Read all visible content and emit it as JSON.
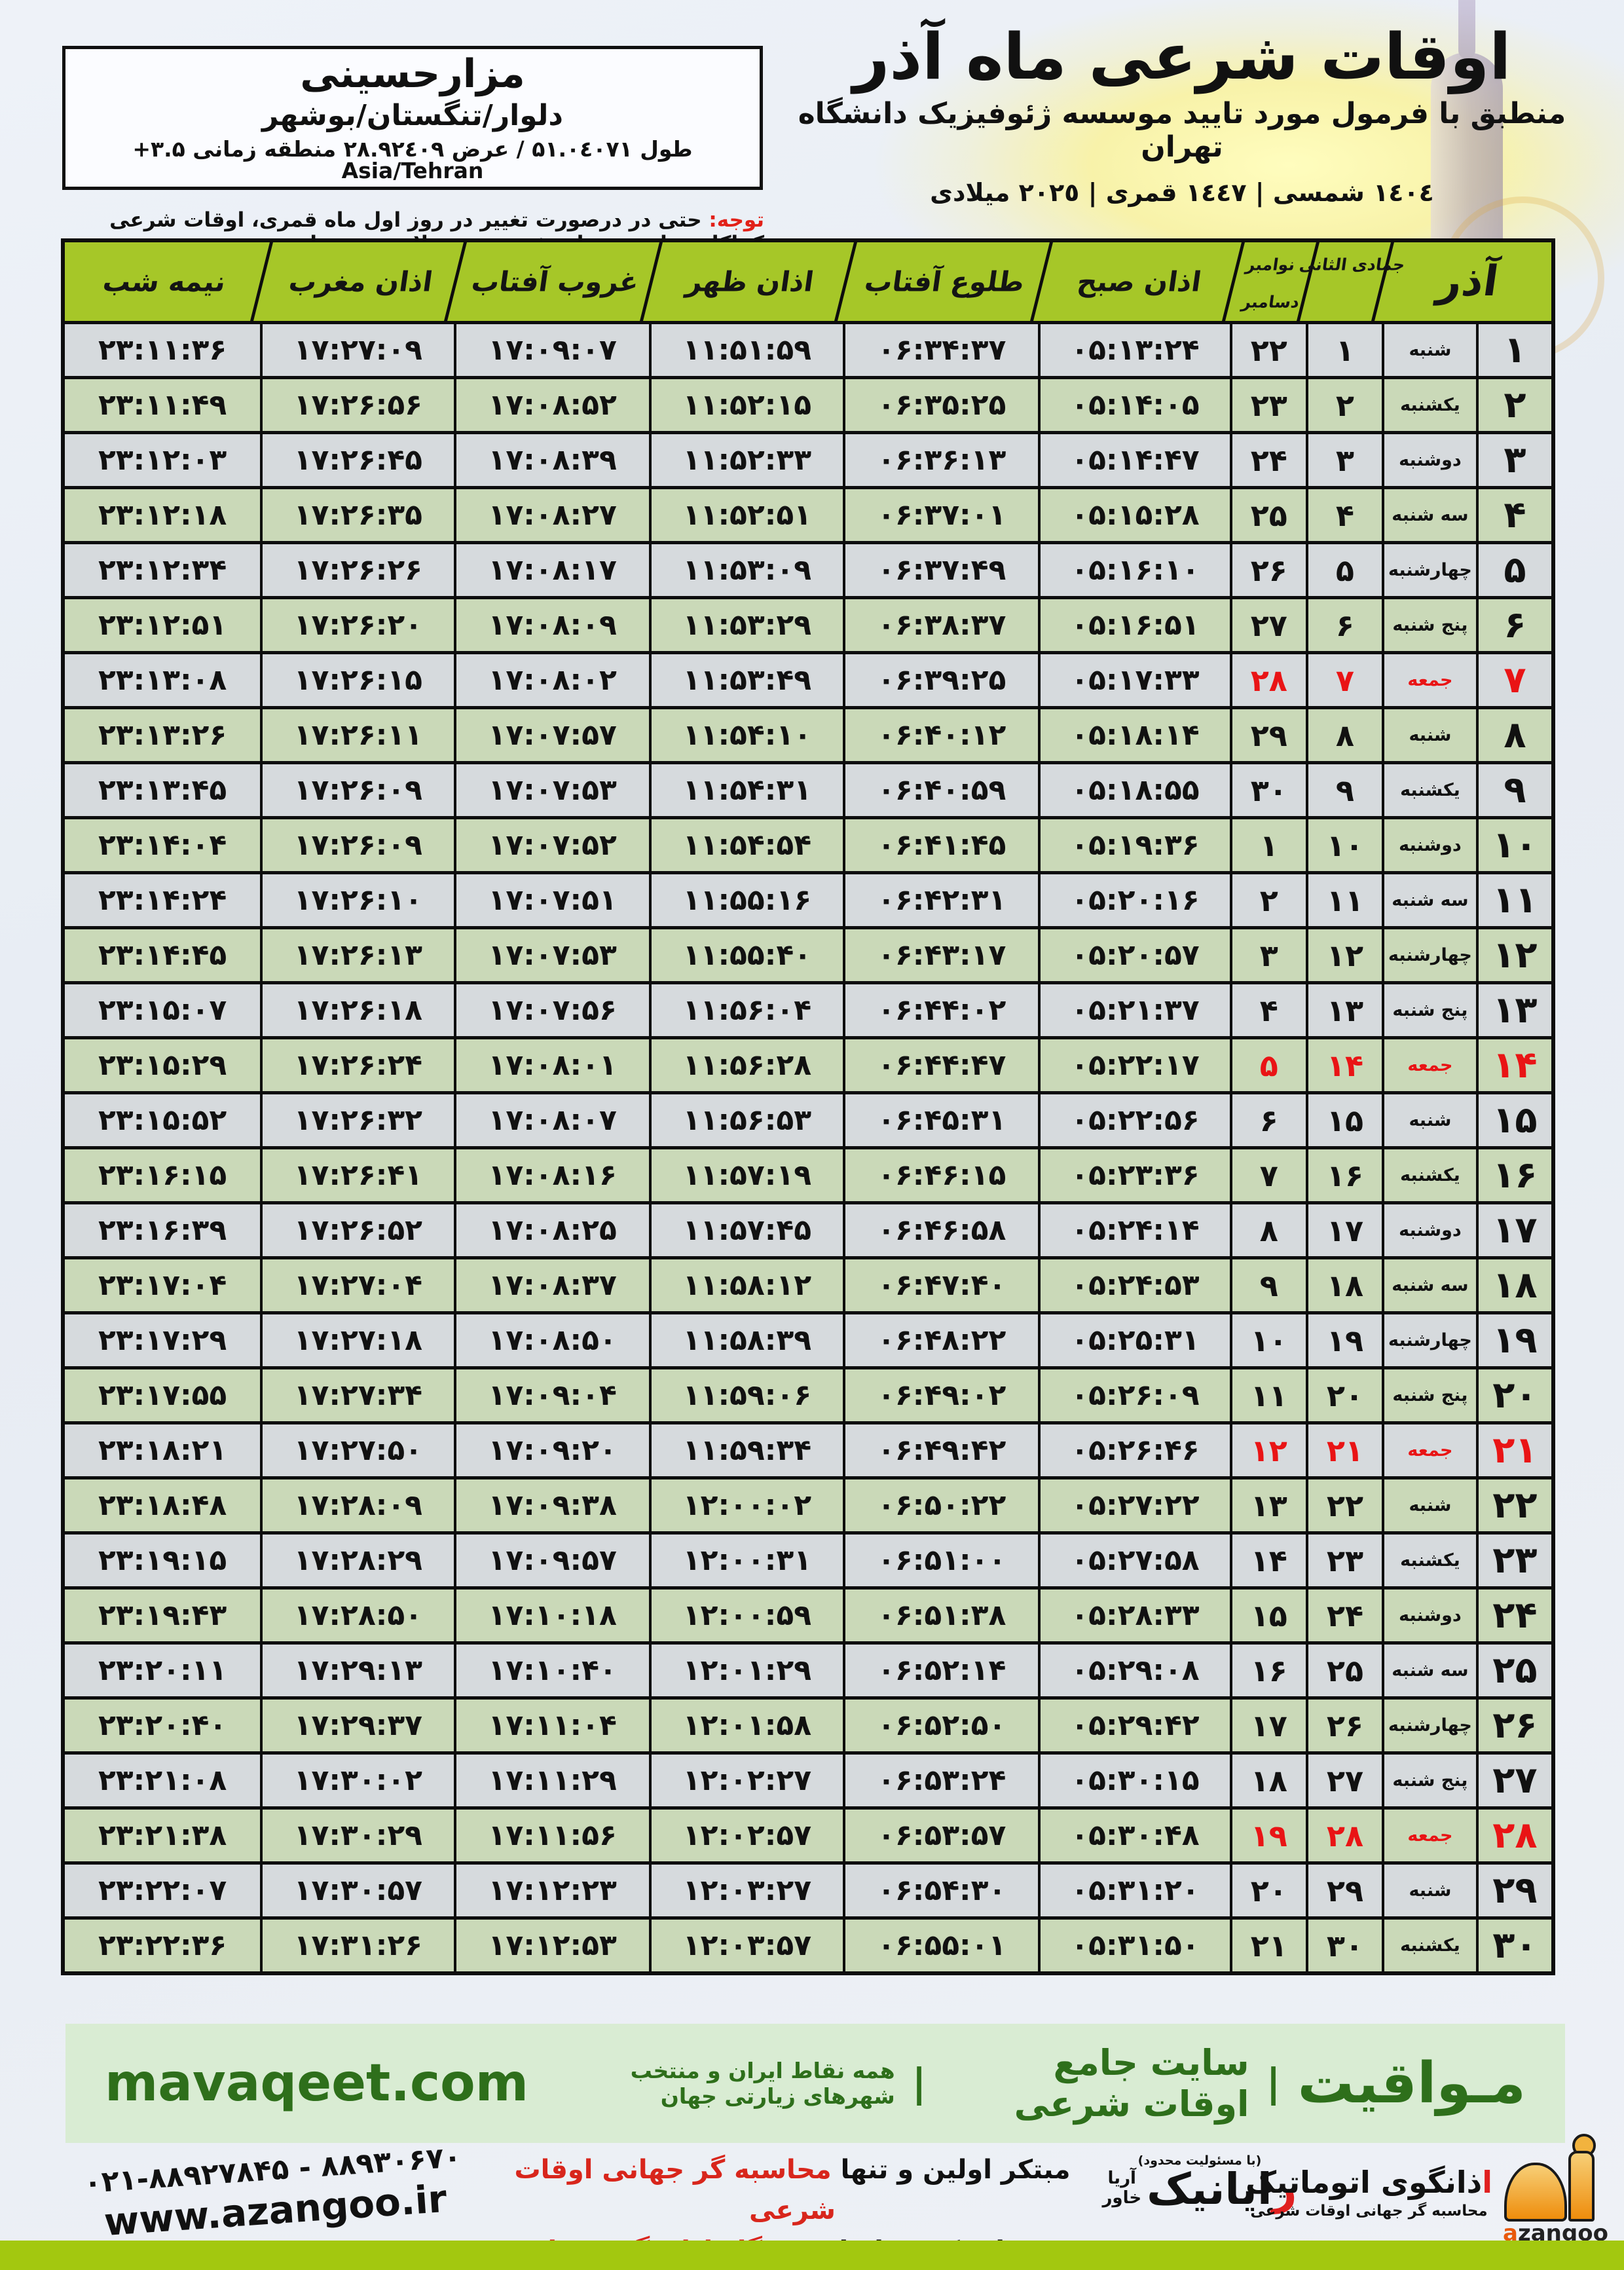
{
  "title": {
    "main": "اوقات شرعی ماه آذر",
    "subtitle": "منطبق با فرمول مورد تایید موسسه ژئوفیزیک دانشگاه تهران",
    "dates": "١٤٠٤ شمسی | ١٤٤٧ قمری | ٢٠٢٥ میلادی"
  },
  "location": {
    "name": "مزارحسینی",
    "region": "دلوار/تنگستان/بوشهر",
    "coords": "طول ۵۱.۰٤۰۷۱ / عرض ۲۸.۹۲٤۰۹ منطقه زمانی ‎+۳.۵‎ Asia/Tehran"
  },
  "note": {
    "label": "توجه:",
    "text": " حتی در درصورت تغییر در روز اول ماه قمری، اوقات شرعی کماکان برای روزهای شمسی و میلادی معتبر است."
  },
  "table": {
    "headers": {
      "month": "آذر",
      "hijri_month": "جمادی الثانی",
      "greg_month_1": "نوامبر",
      "greg_month_2": "دسامبر",
      "fajr": "اذان صبح",
      "sunrise": "طلوع آفتاب",
      "dhuhr": "اذان ظهر",
      "sunset": "غروب آفتاب",
      "maghrib": "اذان مغرب",
      "midnight": "نیمه شب"
    },
    "rows": [
      {
        "day": "۱",
        "weekday": "شنبه",
        "hijri": "۱",
        "greg": "۲۲",
        "fajr": "۰۵:۱۳:۲۴",
        "sunrise": "۰۶:۳۴:۳۷",
        "dhuhr": "۱۱:۵۱:۵۹",
        "sunset": "۱۷:۰۹:۰۷",
        "maghrib": "۱۷:۲۷:۰۹",
        "midnight": "۲۳:۱۱:۳۶",
        "friday": false
      },
      {
        "day": "۲",
        "weekday": "یکشنبه",
        "hijri": "۲",
        "greg": "۲۳",
        "fajr": "۰۵:۱۴:۰۵",
        "sunrise": "۰۶:۳۵:۲۵",
        "dhuhr": "۱۱:۵۲:۱۵",
        "sunset": "۱۷:۰۸:۵۲",
        "maghrib": "۱۷:۲۶:۵۶",
        "midnight": "۲۳:۱۱:۴۹",
        "friday": false
      },
      {
        "day": "۳",
        "weekday": "دوشنبه",
        "hijri": "۳",
        "greg": "۲۴",
        "fajr": "۰۵:۱۴:۴۷",
        "sunrise": "۰۶:۳۶:۱۳",
        "dhuhr": "۱۱:۵۲:۳۳",
        "sunset": "۱۷:۰۸:۳۹",
        "maghrib": "۱۷:۲۶:۴۵",
        "midnight": "۲۳:۱۲:۰۳",
        "friday": false
      },
      {
        "day": "۴",
        "weekday": "سه شنبه",
        "hijri": "۴",
        "greg": "۲۵",
        "fajr": "۰۵:۱۵:۲۸",
        "sunrise": "۰۶:۳۷:۰۱",
        "dhuhr": "۱۱:۵۲:۵۱",
        "sunset": "۱۷:۰۸:۲۷",
        "maghrib": "۱۷:۲۶:۳۵",
        "midnight": "۲۳:۱۲:۱۸",
        "friday": false
      },
      {
        "day": "۵",
        "weekday": "چهارشنبه",
        "hijri": "۵",
        "greg": "۲۶",
        "fajr": "۰۵:۱۶:۱۰",
        "sunrise": "۰۶:۳۷:۴۹",
        "dhuhr": "۱۱:۵۳:۰۹",
        "sunset": "۱۷:۰۸:۱۷",
        "maghrib": "۱۷:۲۶:۲۶",
        "midnight": "۲۳:۱۲:۳۴",
        "friday": false
      },
      {
        "day": "۶",
        "weekday": "پنج شنبه",
        "hijri": "۶",
        "greg": "۲۷",
        "fajr": "۰۵:۱۶:۵۱",
        "sunrise": "۰۶:۳۸:۳۷",
        "dhuhr": "۱۱:۵۳:۲۹",
        "sunset": "۱۷:۰۸:۰۹",
        "maghrib": "۱۷:۲۶:۲۰",
        "midnight": "۲۳:۱۲:۵۱",
        "friday": false
      },
      {
        "day": "۷",
        "weekday": "جمعه",
        "hijri": "۷",
        "greg": "۲۸",
        "fajr": "۰۵:۱۷:۳۳",
        "sunrise": "۰۶:۳۹:۲۵",
        "dhuhr": "۱۱:۵۳:۴۹",
        "sunset": "۱۷:۰۸:۰۲",
        "maghrib": "۱۷:۲۶:۱۵",
        "midnight": "۲۳:۱۳:۰۸",
        "friday": true
      },
      {
        "day": "۸",
        "weekday": "شنبه",
        "hijri": "۸",
        "greg": "۲۹",
        "fajr": "۰۵:۱۸:۱۴",
        "sunrise": "۰۶:۴۰:۱۲",
        "dhuhr": "۱۱:۵۴:۱۰",
        "sunset": "۱۷:۰۷:۵۷",
        "maghrib": "۱۷:۲۶:۱۱",
        "midnight": "۲۳:۱۳:۲۶",
        "friday": false
      },
      {
        "day": "۹",
        "weekday": "یکشنبه",
        "hijri": "۹",
        "greg": "۳۰",
        "fajr": "۰۵:۱۸:۵۵",
        "sunrise": "۰۶:۴۰:۵۹",
        "dhuhr": "۱۱:۵۴:۳۱",
        "sunset": "۱۷:۰۷:۵۳",
        "maghrib": "۱۷:۲۶:۰۹",
        "midnight": "۲۳:۱۳:۴۵",
        "friday": false
      },
      {
        "day": "۱۰",
        "weekday": "دوشنبه",
        "hijri": "۱۰",
        "greg": "۱",
        "fajr": "۰۵:۱۹:۳۶",
        "sunrise": "۰۶:۴۱:۴۵",
        "dhuhr": "۱۱:۵۴:۵۴",
        "sunset": "۱۷:۰۷:۵۲",
        "maghrib": "۱۷:۲۶:۰۹",
        "midnight": "۲۳:۱۴:۰۴",
        "friday": false
      },
      {
        "day": "۱۱",
        "weekday": "سه شنبه",
        "hijri": "۱۱",
        "greg": "۲",
        "fajr": "۰۵:۲۰:۱۶",
        "sunrise": "۰۶:۴۲:۳۱",
        "dhuhr": "۱۱:۵۵:۱۶",
        "sunset": "۱۷:۰۷:۵۱",
        "maghrib": "۱۷:۲۶:۱۰",
        "midnight": "۲۳:۱۴:۲۴",
        "friday": false
      },
      {
        "day": "۱۲",
        "weekday": "چهارشنبه",
        "hijri": "۱۲",
        "greg": "۳",
        "fajr": "۰۵:۲۰:۵۷",
        "sunrise": "۰۶:۴۳:۱۷",
        "dhuhr": "۱۱:۵۵:۴۰",
        "sunset": "۱۷:۰۷:۵۳",
        "maghrib": "۱۷:۲۶:۱۳",
        "midnight": "۲۳:۱۴:۴۵",
        "friday": false
      },
      {
        "day": "۱۳",
        "weekday": "پنج شنبه",
        "hijri": "۱۳",
        "greg": "۴",
        "fajr": "۰۵:۲۱:۳۷",
        "sunrise": "۰۶:۴۴:۰۲",
        "dhuhr": "۱۱:۵۶:۰۴",
        "sunset": "۱۷:۰۷:۵۶",
        "maghrib": "۱۷:۲۶:۱۸",
        "midnight": "۲۳:۱۵:۰۷",
        "friday": false
      },
      {
        "day": "۱۴",
        "weekday": "جمعه",
        "hijri": "۱۴",
        "greg": "۵",
        "fajr": "۰۵:۲۲:۱۷",
        "sunrise": "۰۶:۴۴:۴۷",
        "dhuhr": "۱۱:۵۶:۲۸",
        "sunset": "۱۷:۰۸:۰۱",
        "maghrib": "۱۷:۲۶:۲۴",
        "midnight": "۲۳:۱۵:۲۹",
        "friday": true
      },
      {
        "day": "۱۵",
        "weekday": "شنبه",
        "hijri": "۱۵",
        "greg": "۶",
        "fajr": "۰۵:۲۲:۵۶",
        "sunrise": "۰۶:۴۵:۳۱",
        "dhuhr": "۱۱:۵۶:۵۳",
        "sunset": "۱۷:۰۸:۰۷",
        "maghrib": "۱۷:۲۶:۳۲",
        "midnight": "۲۳:۱۵:۵۲",
        "friday": false
      },
      {
        "day": "۱۶",
        "weekday": "یکشنبه",
        "hijri": "۱۶",
        "greg": "۷",
        "fajr": "۰۵:۲۳:۳۶",
        "sunrise": "۰۶:۴۶:۱۵",
        "dhuhr": "۱۱:۵۷:۱۹",
        "sunset": "۱۷:۰۸:۱۶",
        "maghrib": "۱۷:۲۶:۴۱",
        "midnight": "۲۳:۱۶:۱۵",
        "friday": false
      },
      {
        "day": "۱۷",
        "weekday": "دوشنبه",
        "hijri": "۱۷",
        "greg": "۸",
        "fajr": "۰۵:۲۴:۱۴",
        "sunrise": "۰۶:۴۶:۵۸",
        "dhuhr": "۱۱:۵۷:۴۵",
        "sunset": "۱۷:۰۸:۲۵",
        "maghrib": "۱۷:۲۶:۵۲",
        "midnight": "۲۳:۱۶:۳۹",
        "friday": false
      },
      {
        "day": "۱۸",
        "weekday": "سه شنبه",
        "hijri": "۱۸",
        "greg": "۹",
        "fajr": "۰۵:۲۴:۵۳",
        "sunrise": "۰۶:۴۷:۴۰",
        "dhuhr": "۱۱:۵۸:۱۲",
        "sunset": "۱۷:۰۸:۳۷",
        "maghrib": "۱۷:۲۷:۰۴",
        "midnight": "۲۳:۱۷:۰۴",
        "friday": false
      },
      {
        "day": "۱۹",
        "weekday": "چهارشنبه",
        "hijri": "۱۹",
        "greg": "۱۰",
        "fajr": "۰۵:۲۵:۳۱",
        "sunrise": "۰۶:۴۸:۲۲",
        "dhuhr": "۱۱:۵۸:۳۹",
        "sunset": "۱۷:۰۸:۵۰",
        "maghrib": "۱۷:۲۷:۱۸",
        "midnight": "۲۳:۱۷:۲۹",
        "friday": false
      },
      {
        "day": "۲۰",
        "weekday": "پنج شنبه",
        "hijri": "۲۰",
        "greg": "۱۱",
        "fajr": "۰۵:۲۶:۰۹",
        "sunrise": "۰۶:۴۹:۰۲",
        "dhuhr": "۱۱:۵۹:۰۶",
        "sunset": "۱۷:۰۹:۰۴",
        "maghrib": "۱۷:۲۷:۳۴",
        "midnight": "۲۳:۱۷:۵۵",
        "friday": false
      },
      {
        "day": "۲۱",
        "weekday": "جمعه",
        "hijri": "۲۱",
        "greg": "۱۲",
        "fajr": "۰۵:۲۶:۴۶",
        "sunrise": "۰۶:۴۹:۴۲",
        "dhuhr": "۱۱:۵۹:۳۴",
        "sunset": "۱۷:۰۹:۲۰",
        "maghrib": "۱۷:۲۷:۵۰",
        "midnight": "۲۳:۱۸:۲۱",
        "friday": true
      },
      {
        "day": "۲۲",
        "weekday": "شنبه",
        "hijri": "۲۲",
        "greg": "۱۳",
        "fajr": "۰۵:۲۷:۲۲",
        "sunrise": "۰۶:۵۰:۲۲",
        "dhuhr": "۱۲:۰۰:۰۲",
        "sunset": "۱۷:۰۹:۳۸",
        "maghrib": "۱۷:۲۸:۰۹",
        "midnight": "۲۳:۱۸:۴۸",
        "friday": false
      },
      {
        "day": "۲۳",
        "weekday": "یکشنبه",
        "hijri": "۲۳",
        "greg": "۱۴",
        "fajr": "۰۵:۲۷:۵۸",
        "sunrise": "۰۶:۵۱:۰۰",
        "dhuhr": "۱۲:۰۰:۳۱",
        "sunset": "۱۷:۰۹:۵۷",
        "maghrib": "۱۷:۲۸:۲۹",
        "midnight": "۲۳:۱۹:۱۵",
        "friday": false
      },
      {
        "day": "۲۴",
        "weekday": "دوشنبه",
        "hijri": "۲۴",
        "greg": "۱۵",
        "fajr": "۰۵:۲۸:۳۳",
        "sunrise": "۰۶:۵۱:۳۸",
        "dhuhr": "۱۲:۰۰:۵۹",
        "sunset": "۱۷:۱۰:۱۸",
        "maghrib": "۱۷:۲۸:۵۰",
        "midnight": "۲۳:۱۹:۴۳",
        "friday": false
      },
      {
        "day": "۲۵",
        "weekday": "سه شنبه",
        "hijri": "۲۵",
        "greg": "۱۶",
        "fajr": "۰۵:۲۹:۰۸",
        "sunrise": "۰۶:۵۲:۱۴",
        "dhuhr": "۱۲:۰۱:۲۹",
        "sunset": "۱۷:۱۰:۴۰",
        "maghrib": "۱۷:۲۹:۱۳",
        "midnight": "۲۳:۲۰:۱۱",
        "friday": false
      },
      {
        "day": "۲۶",
        "weekday": "چهارشنبه",
        "hijri": "۲۶",
        "greg": "۱۷",
        "fajr": "۰۵:۲۹:۴۲",
        "sunrise": "۰۶:۵۲:۵۰",
        "dhuhr": "۱۲:۰۱:۵۸",
        "sunset": "۱۷:۱۱:۰۴",
        "maghrib": "۱۷:۲۹:۳۷",
        "midnight": "۲۳:۲۰:۴۰",
        "friday": false
      },
      {
        "day": "۲۷",
        "weekday": "پنج شنبه",
        "hijri": "۲۷",
        "greg": "۱۸",
        "fajr": "۰۵:۳۰:۱۵",
        "sunrise": "۰۶:۵۳:۲۴",
        "dhuhr": "۱۲:۰۲:۲۷",
        "sunset": "۱۷:۱۱:۲۹",
        "maghrib": "۱۷:۳۰:۰۲",
        "midnight": "۲۳:۲۱:۰۸",
        "friday": false
      },
      {
        "day": "۲۸",
        "weekday": "جمعه",
        "hijri": "۲۸",
        "greg": "۱۹",
        "fajr": "۰۵:۳۰:۴۸",
        "sunrise": "۰۶:۵۳:۵۷",
        "dhuhr": "۱۲:۰۲:۵۷",
        "sunset": "۱۷:۱۱:۵۶",
        "maghrib": "۱۷:۳۰:۲۹",
        "midnight": "۲۳:۲۱:۳۸",
        "friday": true
      },
      {
        "day": "۲۹",
        "weekday": "شنبه",
        "hijri": "۲۹",
        "greg": "۲۰",
        "fajr": "۰۵:۳۱:۲۰",
        "sunrise": "۰۶:۵۴:۳۰",
        "dhuhr": "۱۲:۰۳:۲۷",
        "sunset": "۱۷:۱۲:۲۳",
        "maghrib": "۱۷:۳۰:۵۷",
        "midnight": "۲۳:۲۲:۰۷",
        "friday": false
      },
      {
        "day": "۳۰",
        "weekday": "یکشنبه",
        "hijri": "۳۰",
        "greg": "۲۱",
        "fajr": "۰۵:۳۱:۵۰",
        "sunrise": "۰۶:۵۵:۰۱",
        "dhuhr": "۱۲:۰۳:۵۷",
        "sunset": "۱۷:۱۲:۵۳",
        "maghrib": "۱۷:۳۱:۲۶",
        "midnight": "۲۳:۲۲:۳۶",
        "friday": false
      }
    ]
  },
  "band": {
    "brand": "مـواقیت",
    "sep": "|",
    "tagline_main": "سایت جامع اوقات شرعی",
    "tagline_sub": "همه نقاط ایران و منتخب شهرهای زیارتی جهان",
    "url": "mavaqeet.com"
  },
  "contact": {
    "phones": "۰۲۱-۸۸۹۲۷۸۴۵ - ۸۸۹۳۰۶۷۰",
    "website": "www.azangoo.ir"
  },
  "promo": {
    "line1_black": "مبتکر اولین و تنها ",
    "line1_red": "محاسبه گر جهانی اوقات شرعی",
    "line2_black": "و تولید کننده انواع ",
    "line2_red": "دستگاه اذان گوی تمام خودکار ماهواره ای"
  },
  "rayanik": {
    "note": "(با مسئولیت محدود)",
    "name_first": "ر",
    "name_rest": "ایانیک",
    "sub_top": "آریا",
    "sub_bottom": "خاور"
  },
  "azangoo": {
    "title_first": "ا",
    "title_rest": "ذانگوی اتوماتیک",
    "subtitle": "محاسبه گر جهانی اوقات شرعی",
    "latin_first": "a",
    "latin_rest": "zangoo"
  },
  "colors": {
    "header_green": "#a6c728",
    "row_green": "#d7e7c4",
    "row_light": "#f3f7fb",
    "friday_red": "#e91415",
    "note_red": "#e22118",
    "band_bg": "#d9ecd3",
    "band_text": "#2e6f1b",
    "bottom_bar": "#a3c80f",
    "azangoo_orange": "#ee8d0c"
  }
}
